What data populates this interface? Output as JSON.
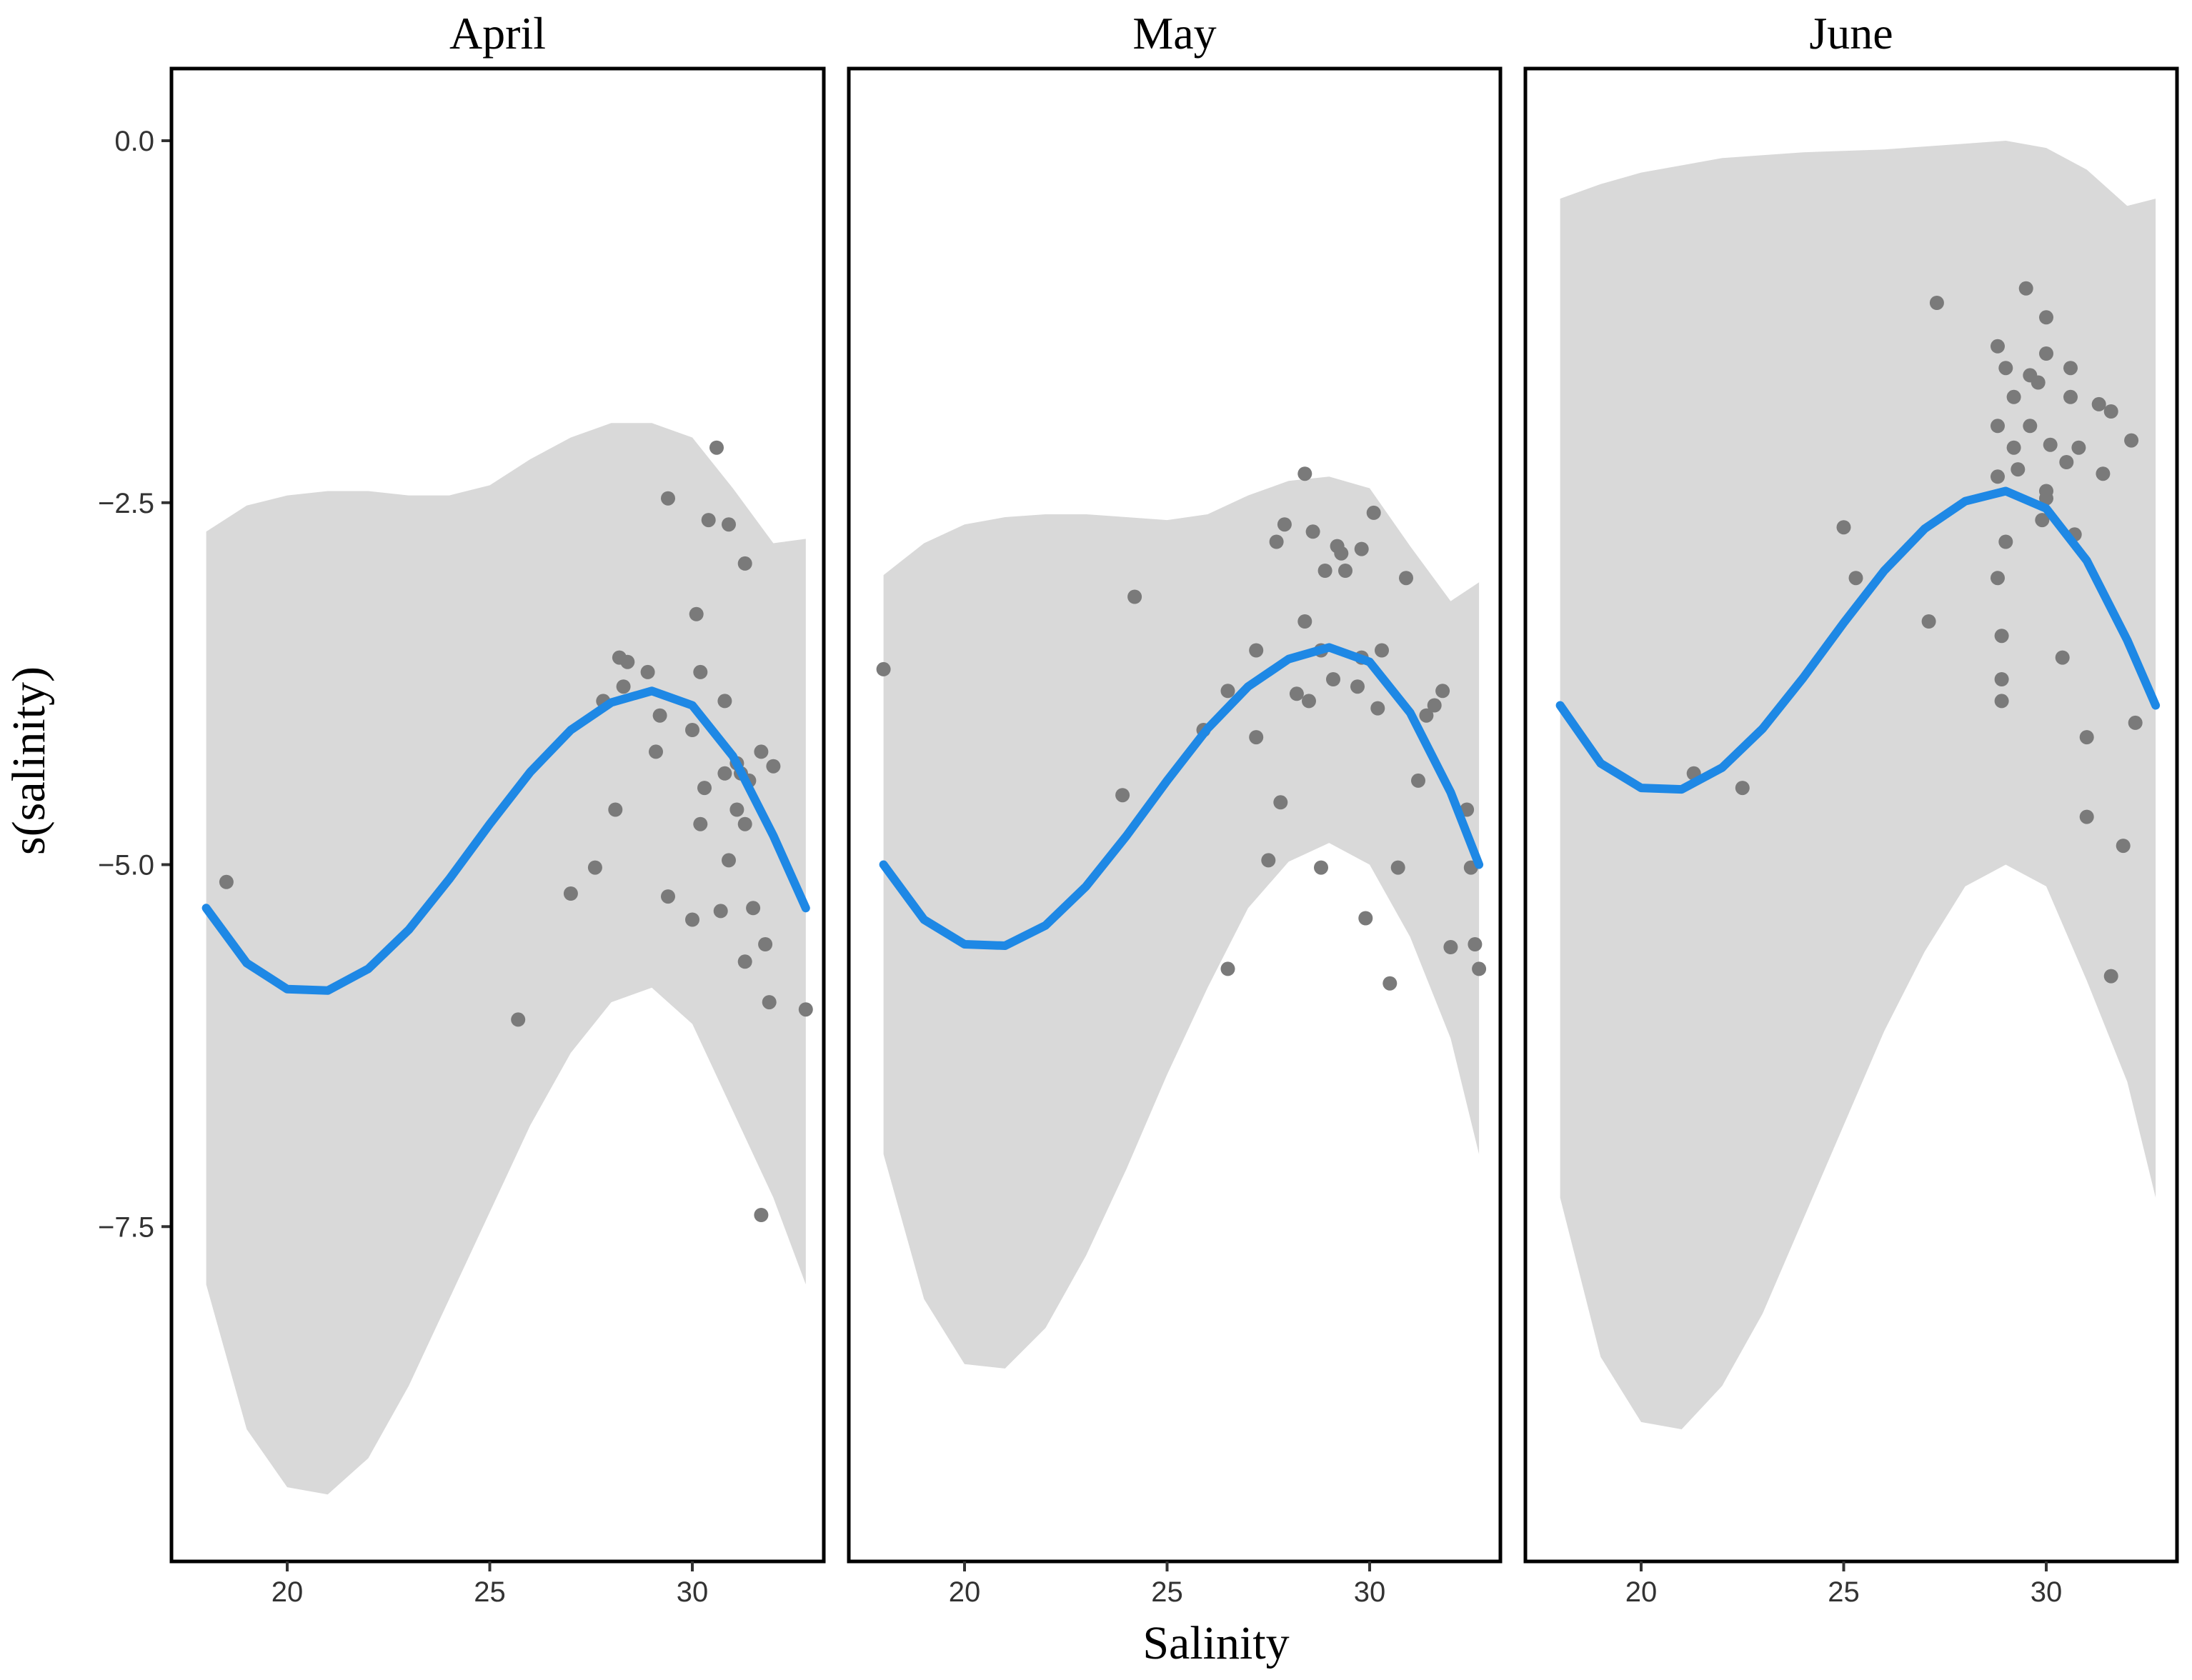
{
  "chart_data": {
    "type": "scatter",
    "subtype": "GAM partial effect with confidence band, faceted by month",
    "xlabel": "Salinity",
    "ylabel": "s(salinity)",
    "xlim": [
      17.5,
      33.5
    ],
    "ylim": [
      -9.9,
      0.5
    ],
    "x_ticks": [
      20,
      25,
      30
    ],
    "x_tick_labels": [
      "20",
      "25",
      "30"
    ],
    "y_ticks": [
      0.0,
      -2.5,
      -5.0,
      -7.5
    ],
    "y_tick_labels": [
      "0.0",
      "−2.5",
      "−5.0",
      "−7.5"
    ],
    "grid": false,
    "colors": {
      "line": "#1e88e5",
      "band": "#d9d9d9",
      "points": "#7a7a7a",
      "frame": "#000000",
      "background": "#ffffff"
    },
    "panels": [
      {
        "title": "April",
        "curve_x": [
          18,
          19,
          20,
          21,
          22,
          23,
          24,
          25,
          26,
          27,
          28,
          29,
          30,
          31,
          32,
          32.8
        ],
        "curve_y": [
          -5.3,
          -5.68,
          -5.86,
          -5.87,
          -5.72,
          -5.45,
          -5.1,
          -4.72,
          -4.36,
          -4.07,
          -3.88,
          -3.8,
          -3.9,
          -4.25,
          -4.8,
          -5.3
        ],
        "upper_y": [
          -2.7,
          -2.52,
          -2.45,
          -2.42,
          -2.42,
          -2.45,
          -2.45,
          -2.38,
          -2.2,
          -2.05,
          -1.95,
          -1.95,
          -2.05,
          -2.4,
          -2.78,
          -2.75
        ],
        "lower_y": [
          -7.9,
          -8.9,
          -9.3,
          -9.35,
          -9.1,
          -8.6,
          -8.0,
          -7.4,
          -6.8,
          -6.3,
          -5.95,
          -5.85,
          -6.1,
          -6.7,
          -7.3,
          -7.9
        ],
        "points": [
          [
            18.5,
            -5.12
          ],
          [
            25.7,
            -6.07
          ],
          [
            27,
            -5.2
          ],
          [
            27.6,
            -5.02
          ],
          [
            27.8,
            -3.87
          ],
          [
            28.1,
            -4.62
          ],
          [
            28.2,
            -3.57
          ],
          [
            28.3,
            -3.77
          ],
          [
            28.4,
            -3.6
          ],
          [
            28.9,
            -3.67
          ],
          [
            29.1,
            -4.22
          ],
          [
            29.2,
            -3.97
          ],
          [
            29.4,
            -2.47
          ],
          [
            29.4,
            -5.22
          ],
          [
            30,
            -4.07
          ],
          [
            30,
            -5.38
          ],
          [
            30.1,
            -3.27
          ],
          [
            30.2,
            -4.72
          ],
          [
            30.2,
            -3.67
          ],
          [
            30.3,
            -4.47
          ],
          [
            30.4,
            -2.62
          ],
          [
            30.6,
            -2.12
          ],
          [
            30.7,
            -5.32
          ],
          [
            30.8,
            -4.37
          ],
          [
            30.8,
            -3.87
          ],
          [
            30.9,
            -4.97
          ],
          [
            30.9,
            -2.65
          ],
          [
            31.1,
            -4.3
          ],
          [
            31.1,
            -4.62
          ],
          [
            31.2,
            -4.37
          ],
          [
            31.3,
            -4.72
          ],
          [
            31.3,
            -5.67
          ],
          [
            31.3,
            -2.92
          ],
          [
            31.4,
            -4.42
          ],
          [
            31.5,
            -5.3
          ],
          [
            31.7,
            -7.42
          ],
          [
            31.7,
            -4.22
          ],
          [
            31.8,
            -5.55
          ],
          [
            31.9,
            -5.95
          ],
          [
            32,
            -4.32
          ],
          [
            32.8,
            -6.0
          ]
        ]
      },
      {
        "title": "May",
        "curve_x": [
          18,
          19,
          20,
          21,
          22,
          23,
          24,
          25,
          26,
          27,
          28,
          29,
          30,
          31,
          32,
          32.7
        ],
        "curve_y": [
          -5.0,
          -5.38,
          -5.55,
          -5.56,
          -5.42,
          -5.15,
          -4.8,
          -4.42,
          -4.06,
          -3.77,
          -3.58,
          -3.5,
          -3.6,
          -3.95,
          -4.5,
          -5.0
        ],
        "upper_y": [
          -3.0,
          -2.78,
          -2.65,
          -2.6,
          -2.58,
          -2.58,
          -2.6,
          -2.62,
          -2.58,
          -2.45,
          -2.35,
          -2.32,
          -2.4,
          -2.8,
          -3.18,
          -3.05
        ],
        "lower_y": [
          -7.0,
          -8.0,
          -8.45,
          -8.48,
          -8.2,
          -7.7,
          -7.1,
          -6.45,
          -5.85,
          -5.3,
          -4.98,
          -4.85,
          -5.0,
          -5.5,
          -6.2,
          -7.0
        ],
        "points": [
          [
            18,
            -3.65
          ],
          [
            23.9,
            -4.52
          ],
          [
            24.2,
            -3.15
          ],
          [
            25.9,
            -4.07
          ],
          [
            26.5,
            -5.72
          ],
          [
            26.5,
            -3.8
          ],
          [
            27.2,
            -4.12
          ],
          [
            27.2,
            -3.52
          ],
          [
            27.5,
            -4.97
          ],
          [
            27.7,
            -2.77
          ],
          [
            27.8,
            -4.57
          ],
          [
            27.9,
            -2.65
          ],
          [
            28.2,
            -3.82
          ],
          [
            28.4,
            -3.32
          ],
          [
            28.4,
            -2.3
          ],
          [
            28.5,
            -3.87
          ],
          [
            28.6,
            -2.7
          ],
          [
            28.8,
            -3.52
          ],
          [
            28.8,
            -5.02
          ],
          [
            28.9,
            -2.97
          ],
          [
            29.1,
            -3.72
          ],
          [
            29.2,
            -2.8
          ],
          [
            29.3,
            -2.85
          ],
          [
            29.4,
            -2.97
          ],
          [
            29.7,
            -3.77
          ],
          [
            29.8,
            -2.82
          ],
          [
            29.8,
            -3.57
          ],
          [
            29.9,
            -5.37
          ],
          [
            30.1,
            -2.57
          ],
          [
            30.2,
            -3.92
          ],
          [
            30.3,
            -3.52
          ],
          [
            30.5,
            -5.82
          ],
          [
            30.7,
            -5.02
          ],
          [
            30.9,
            -3.02
          ],
          [
            31.2,
            -4.42
          ],
          [
            31.4,
            -3.97
          ],
          [
            31.6,
            -3.9
          ],
          [
            31.8,
            -3.8
          ],
          [
            32,
            -5.57
          ],
          [
            32.4,
            -4.62
          ],
          [
            32.5,
            -5.02
          ],
          [
            32.6,
            -5.55
          ],
          [
            32.7,
            -5.72
          ]
        ]
      },
      {
        "title": "June",
        "curve_x": [
          18,
          19,
          20,
          21,
          22,
          23,
          24,
          25,
          26,
          27,
          28,
          29,
          30,
          31,
          32,
          32.7
        ],
        "curve_y": [
          -3.9,
          -4.3,
          -4.47,
          -4.48,
          -4.33,
          -4.06,
          -3.71,
          -3.33,
          -2.97,
          -2.68,
          -2.49,
          -2.42,
          -2.54,
          -2.9,
          -3.45,
          -3.9
        ],
        "upper_y": [
          -0.4,
          -0.3,
          -0.22,
          -0.17,
          -0.12,
          -0.1,
          -0.08,
          -0.07,
          -0.06,
          -0.04,
          -0.02,
          0.0,
          -0.05,
          -0.2,
          -0.45,
          -0.4
        ],
        "lower_y": [
          -7.3,
          -8.4,
          -8.85,
          -8.9,
          -8.6,
          -8.1,
          -7.45,
          -6.8,
          -6.15,
          -5.6,
          -5.15,
          -5.0,
          -5.15,
          -5.8,
          -6.5,
          -7.3
        ],
        "points": [
          [
            21.3,
            -4.37
          ],
          [
            22.5,
            -4.47
          ],
          [
            25,
            -2.67
          ],
          [
            25.3,
            -3.02
          ],
          [
            27.1,
            -3.32
          ],
          [
            27.3,
            -1.12
          ],
          [
            28.8,
            -2.32
          ],
          [
            28.8,
            -3.02
          ],
          [
            28.8,
            -1.42
          ],
          [
            28.8,
            -1.97
          ],
          [
            28.9,
            -3.72
          ],
          [
            28.9,
            -3.87
          ],
          [
            28.9,
            -3.42
          ],
          [
            29,
            -1.57
          ],
          [
            29,
            -2.77
          ],
          [
            29.2,
            -2.12
          ],
          [
            29.2,
            -1.77
          ],
          [
            29.3,
            -2.27
          ],
          [
            29.5,
            -1.02
          ],
          [
            29.6,
            -1.97
          ],
          [
            29.6,
            -1.62
          ],
          [
            29.8,
            -1.67
          ],
          [
            29.9,
            -2.62
          ],
          [
            30,
            -1.47
          ],
          [
            30,
            -2.42
          ],
          [
            30,
            -2.47
          ],
          [
            30.1,
            -2.1
          ],
          [
            30,
            -1.22
          ],
          [
            30.4,
            -3.57
          ],
          [
            30.5,
            -2.22
          ],
          [
            30.6,
            -1.77
          ],
          [
            30.6,
            -1.57
          ],
          [
            30.7,
            -2.72
          ],
          [
            30.8,
            -2.12
          ],
          [
            31,
            -4.12
          ],
          [
            31,
            -4.67
          ],
          [
            31.3,
            -1.82
          ],
          [
            31.4,
            -2.3
          ],
          [
            31.6,
            -1.87
          ],
          [
            31.6,
            -5.77
          ],
          [
            31.9,
            -4.87
          ],
          [
            32.1,
            -2.07
          ],
          [
            32.2,
            -4.02
          ]
        ]
      }
    ]
  }
}
